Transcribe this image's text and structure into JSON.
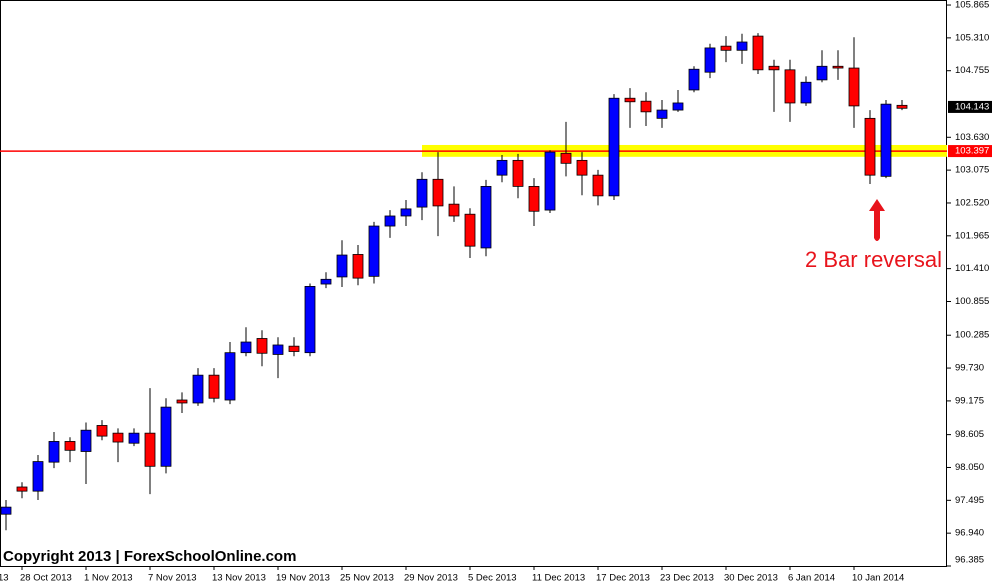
{
  "chart_data": {
    "type": "candlestick",
    "categories": [
      null,
      "28 Oct 2013",
      null,
      null,
      null,
      "1 Nov 2013",
      null,
      null,
      null,
      "7 Nov 2013",
      null,
      null,
      null,
      "13 Nov 2013",
      null,
      null,
      null,
      "19 Nov 2013",
      null,
      null,
      null,
      "25 Nov 2013",
      null,
      null,
      null,
      "29 Nov 2013",
      null,
      null,
      null,
      "5 Dec 2013",
      null,
      null,
      null,
      "11 Dec 2013",
      null,
      null,
      null,
      "17 Dec 2013",
      null,
      null,
      null,
      "23 Dec 2013",
      null,
      null,
      null,
      "30 Dec 2013",
      null,
      null,
      null,
      "6 Jan 2014",
      null,
      null,
      null,
      "10 Jan 2014",
      null,
      null,
      null
    ],
    "partial_date_label": "13",
    "open": [
      97.26,
      97.72,
      97.65,
      98.14,
      98.49,
      98.32,
      98.76,
      98.63,
      98.46,
      98.63,
      98.07,
      99.19,
      99.14,
      99.61,
      99.19,
      99.99,
      100.23,
      99.96,
      100.1,
      99.99,
      101.15,
      101.27,
      101.65,
      101.28,
      102.13,
      102.3,
      102.45,
      102.92,
      102.5,
      102.33,
      101.76,
      102.99,
      103.24,
      102.8,
      102.4,
      103.36,
      103.24,
      102.99,
      102.64,
      104.29,
      104.24,
      103.95,
      104.09,
      104.43,
      104.73,
      105.17,
      105.1,
      105.34,
      104.83,
      104.77,
      104.21,
      104.6,
      104.83,
      104.8,
      103.95,
      102.97,
      104.17
    ],
    "high": [
      97.5,
      97.8,
      98.26,
      98.65,
      98.56,
      98.81,
      98.85,
      98.71,
      98.71,
      99.39,
      99.22,
      99.32,
      99.73,
      99.73,
      100.17,
      100.42,
      100.37,
      100.25,
      100.25,
      101.16,
      101.35,
      101.89,
      101.81,
      102.2,
      102.4,
      102.57,
      103.04,
      103.38,
      102.8,
      102.43,
      102.91,
      103.33,
      103.35,
      102.94,
      103.41,
      103.89,
      103.38,
      103.08,
      104.36,
      104.46,
      104.39,
      104.26,
      104.43,
      104.83,
      105.21,
      105.34,
      105.38,
      105.39,
      104.94,
      104.94,
      104.66,
      105.1,
      105.1,
      105.32,
      104.09,
      104.26,
      104.26
    ],
    "low": [
      96.99,
      97.53,
      97.5,
      98.04,
      98.14,
      97.77,
      98.51,
      98.14,
      98.41,
      97.6,
      97.95,
      98.97,
      99.09,
      99.15,
      99.12,
      99.93,
      99.76,
      99.56,
      99.93,
      99.93,
      101.08,
      101.1,
      101.13,
      101.16,
      101.93,
      102.13,
      102.23,
      101.96,
      102.2,
      101.59,
      101.62,
      102.87,
      102.6,
      102.13,
      102.35,
      102.97,
      102.65,
      102.48,
      102.57,
      103.79,
      103.82,
      103.79,
      104.06,
      104.39,
      104.63,
      104.9,
      104.87,
      104.7,
      104.06,
      103.89,
      104.16,
      104.56,
      104.6,
      103.79,
      102.84,
      102.94,
      104.09
    ],
    "close": [
      97.38,
      97.65,
      98.15,
      98.49,
      98.34,
      98.68,
      98.58,
      98.48,
      98.63,
      98.07,
      99.07,
      99.14,
      99.61,
      99.22,
      99.99,
      100.17,
      99.98,
      100.12,
      100.01,
      101.11,
      101.23,
      101.64,
      101.25,
      102.13,
      102.3,
      102.42,
      102.92,
      102.47,
      102.3,
      101.79,
      102.8,
      103.24,
      102.8,
      102.38,
      103.38,
      103.19,
      102.99,
      102.64,
      104.29,
      104.23,
      104.06,
      104.09,
      104.21,
      104.78,
      105.14,
      105.1,
      105.24,
      104.77,
      104.77,
      104.21,
      104.56,
      104.83,
      104.8,
      104.16,
      102.99,
      104.19,
      104.12
    ],
    "up_color": "#0000ff",
    "down_color": "#ff0000",
    "ylim": [
      96.385,
      105.95
    ],
    "yticks": [
      105.865,
      {
        "value": 105.31,
        "label": "105.310"
      },
      104.755,
      {
        "value": 103.63,
        "label": "103.630"
      },
      103.075,
      {
        "value": 102.52,
        "label": "102.520"
      },
      101.965,
      {
        "value": 101.41,
        "label": "101.410"
      },
      100.855,
      100.285,
      {
        "value": 99.73,
        "label": "99.730"
      },
      99.175,
      98.605,
      {
        "value": 98.05,
        "label": "98.050"
      },
      97.495,
      {
        "value": 96.94,
        "label": "96.940"
      },
      96.385
    ],
    "current_price": 104.143,
    "level": 103.397,
    "level_color": "#ff0000",
    "zone": [
      103.3,
      103.5
    ],
    "zone_color": "#ffff00",
    "annotation": "2 Bar reversal",
    "copyright": "Copyright 2013 | ForexSchoolOnline.com",
    "grid": false
  }
}
